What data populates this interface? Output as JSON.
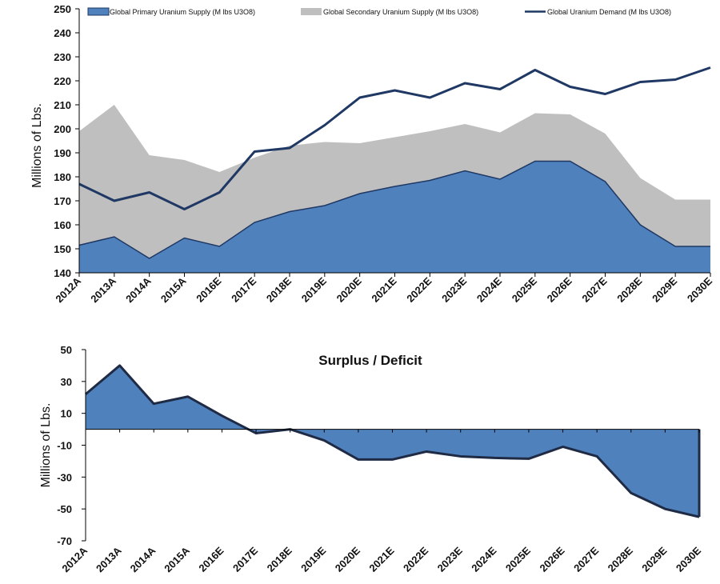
{
  "chart_data": [
    {
      "type": "area",
      "title": "",
      "xlabel": "",
      "ylabel": "Millions of Lbs.",
      "ylim": [
        140,
        250
      ],
      "yticks": [
        140,
        150,
        160,
        170,
        180,
        190,
        200,
        210,
        220,
        230,
        240,
        250
      ],
      "categories": [
        "2012A",
        "2013A",
        "2014A",
        "2015A",
        "2016E",
        "2017E",
        "2018E",
        "2019E",
        "2020E",
        "2021E",
        "2022E",
        "2023E",
        "2024E",
        "2025E",
        "2026E",
        "2027E",
        "2028E",
        "2029E",
        "2030E"
      ],
      "legend_position": "top",
      "series": [
        {
          "name": "Global Primary Uranium Supply (M lbs U3O8)",
          "kind": "area",
          "color": "#4f81bd",
          "edge": "#1f3864",
          "values": [
            151.5,
            155,
            146,
            154.5,
            151,
            161,
            165.5,
            168,
            173,
            176,
            178.5,
            182.5,
            179,
            186.5,
            186.5,
            178,
            160,
            151,
            151
          ]
        },
        {
          "name": "Global Secondary Uranium Supply (M lbs U3O8)",
          "kind": "area",
          "color": "#bfbfbf",
          "values": [
            199,
            210,
            189,
            187,
            182,
            188,
            193,
            194.5,
            194,
            196.5,
            199,
            202,
            198.5,
            206.5,
            206,
            198,
            179.5,
            170.5,
            170.5
          ]
        },
        {
          "name": "Global Uranium Demand (M lbs U3O8)",
          "kind": "line",
          "color": "#1f3864",
          "values": [
            177,
            170,
            173.5,
            166.5,
            173.5,
            190.5,
            192,
            201.5,
            213,
            216,
            213,
            219,
            216.5,
            224.5,
            217.5,
            214.5,
            219.5,
            220.5,
            225.5
          ]
        }
      ]
    },
    {
      "type": "area",
      "title": "Surplus / Deficit",
      "xlabel": "",
      "ylabel": "Millions of Lbs.",
      "ylim": [
        -70,
        50
      ],
      "yticks": [
        -70,
        -50,
        -30,
        -10,
        10,
        30,
        50
      ],
      "categories": [
        "2012A",
        "2013A",
        "2014A",
        "2015A",
        "2016E",
        "2017E",
        "2018E",
        "2019E",
        "2020E",
        "2021E",
        "2022E",
        "2023E",
        "2024E",
        "2025E",
        "2026E",
        "2027E",
        "2028E",
        "2029E",
        "2030E"
      ],
      "series": [
        {
          "name": "Surplus / Deficit",
          "color": "#4f81bd",
          "edge": "#1f2b44",
          "values": [
            22,
            40,
            16,
            20.5,
            8.5,
            -2.5,
            0,
            -7,
            -19,
            -19,
            -14,
            -17,
            -18,
            -18.5,
            -11,
            -17,
            -40,
            -50,
            -55
          ]
        }
      ]
    }
  ]
}
